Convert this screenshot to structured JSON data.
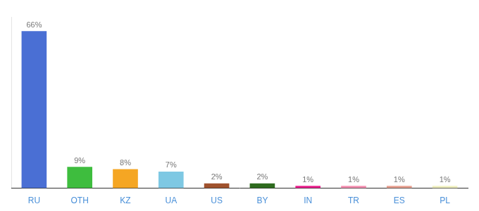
{
  "chart_data": {
    "type": "bar",
    "categories": [
      "RU",
      "OTH",
      "KZ",
      "UA",
      "US",
      "BY",
      "IN",
      "TR",
      "ES",
      "PL"
    ],
    "values": [
      66,
      9,
      8,
      7,
      2,
      2,
      1,
      1,
      1,
      1
    ],
    "value_labels": [
      "66%",
      "9%",
      "8%",
      "7%",
      "2%",
      "2%",
      "1%",
      "1%",
      "1%",
      "1%"
    ],
    "colors": [
      "#4A6FD4",
      "#3EBD3E",
      "#F5A623",
      "#7EC8E3",
      "#A0522D",
      "#2E6B1E",
      "#E91E8C",
      "#F48FB1",
      "#E8A090",
      "#F0F0C0"
    ],
    "ylim": [
      0,
      72
    ],
    "data_labels": true,
    "tick_labels": "x",
    "grid": false
  }
}
